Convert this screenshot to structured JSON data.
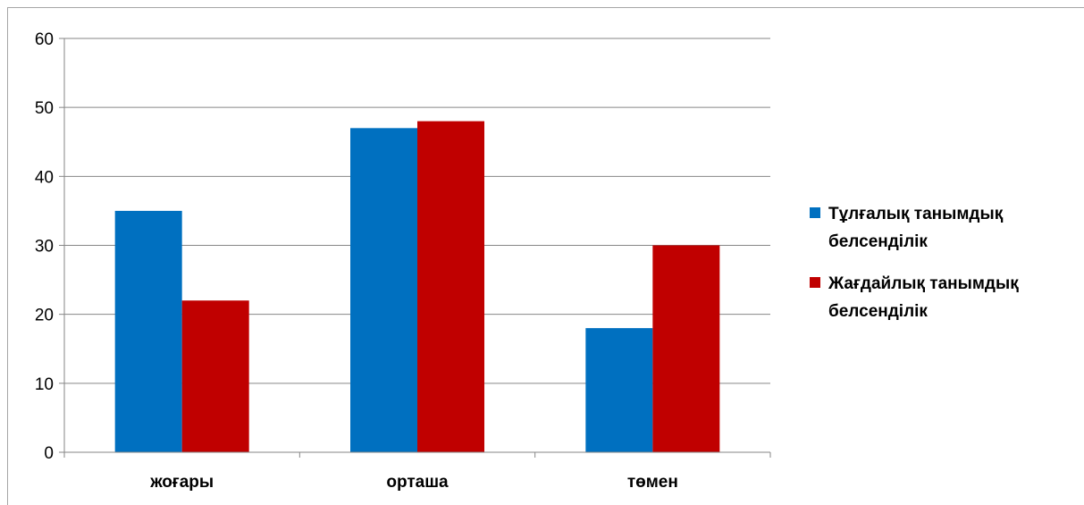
{
  "chart_data": {
    "type": "bar",
    "categories": [
      "жоғары",
      "орташа",
      "төмен"
    ],
    "series": [
      {
        "name": "Тұлғалық танымдық белсенділік",
        "legend_lines": [
          "Тұлғалық танымдық",
          "белсенділік"
        ],
        "color": "#0070C0",
        "values": [
          35,
          47,
          18
        ]
      },
      {
        "name": "Жағдайлық танымдық белсенділік",
        "legend_lines": [
          "Жағдайлық танымдық",
          "белсенділік"
        ],
        "color": "#C00000",
        "values": [
          22,
          48,
          30
        ]
      }
    ],
    "yticks": [
      0,
      10,
      20,
      30,
      40,
      50,
      60
    ],
    "ylim": [
      0,
      60
    ],
    "grid": true,
    "legend_position": "right",
    "title": "",
    "xlabel": "",
    "ylabel": ""
  }
}
